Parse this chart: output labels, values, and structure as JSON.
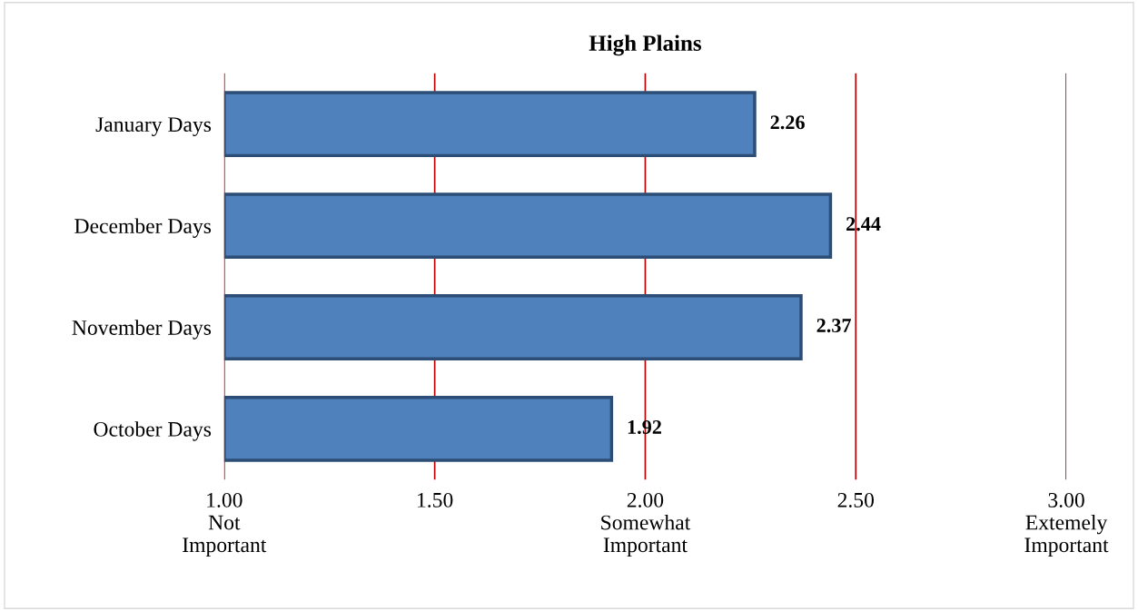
{
  "chart_data": {
    "type": "bar",
    "orientation": "horizontal",
    "title": "High Plains",
    "categories": [
      "January Days",
      "December Days",
      "November Days",
      "October Days"
    ],
    "values": [
      2.26,
      2.44,
      2.37,
      1.92
    ],
    "color": "#4f81bd",
    "data_labels": true,
    "xlim": [
      1,
      3
    ],
    "xticks": [
      {
        "value": 1,
        "label": "1.00\nNot\nImportant"
      },
      {
        "value": 1.5,
        "label": "1.50"
      },
      {
        "value": 2,
        "label": "2.00\nSomewhat\nImportant"
      },
      {
        "value": 2.5,
        "label": "2.50"
      },
      {
        "value": 3,
        "label": "3.00\nExtemely\nImportant"
      }
    ],
    "grid": "x",
    "legend": false
  }
}
